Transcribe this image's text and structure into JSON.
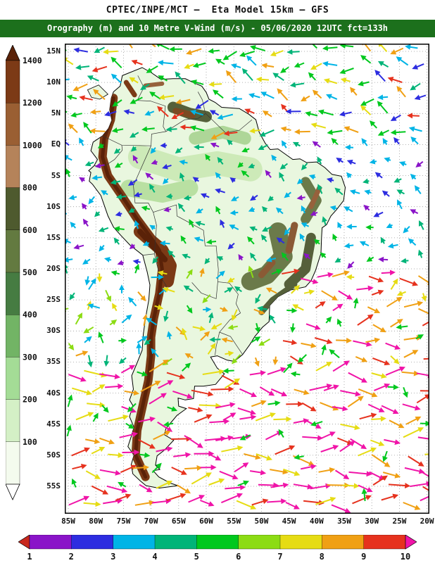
{
  "header": {
    "line1": "CPTEC/INPE/MCT —  Eta Model 15km — GFS",
    "line2": "Orography (m) and 10 Metre V-Wind (m/s) - 05/06/2020 12UTC fct=133h",
    "bar_color": "#1c701c"
  },
  "orography_scale": {
    "units": "m",
    "labels": [
      "1400",
      "1200",
      "1000",
      "800",
      "600",
      "500",
      "400",
      "300",
      "200",
      "100"
    ],
    "top_arrow_color": "#5a2208",
    "cell_colors": [
      "#7c3a16",
      "#9a5f33",
      "#b5835a",
      "#4e5a2e",
      "#637a40",
      "#467c42",
      "#72b465",
      "#a4dc96",
      "#d4f0c6",
      "#f4fbee"
    ],
    "bottom_arrow_color": "#ffffff"
  },
  "wind_scale": {
    "units": "m/s",
    "labels": [
      "1",
      "2",
      "3",
      "4",
      "5",
      "6",
      "7",
      "8",
      "9",
      "10"
    ],
    "left_arrow_color": "#c8281e",
    "cell_colors": [
      "#8a14c8",
      "#2d2de0",
      "#00b4e6",
      "#00b478",
      "#00c81e",
      "#8cdc14",
      "#e6dc14",
      "#f0a014",
      "#e6321e"
    ],
    "right_arrow_color": "#f014a8"
  },
  "map_axes": {
    "lat_ticks": [
      "15N",
      "10N",
      "5N",
      "EQ",
      "5S",
      "10S",
      "15S",
      "20S",
      "25S",
      "30S",
      "35S",
      "40S",
      "45S",
      "50S",
      "55S"
    ],
    "lon_ticks": [
      "85W",
      "80W",
      "75W",
      "70W",
      "65W",
      "60W",
      "55W",
      "50W",
      "45W",
      "40W",
      "35W",
      "30W",
      "25W",
      "20W"
    ]
  },
  "map_colors": {
    "land_base": "#e9f7df",
    "coastline": "#000000",
    "grid": "#999999"
  }
}
